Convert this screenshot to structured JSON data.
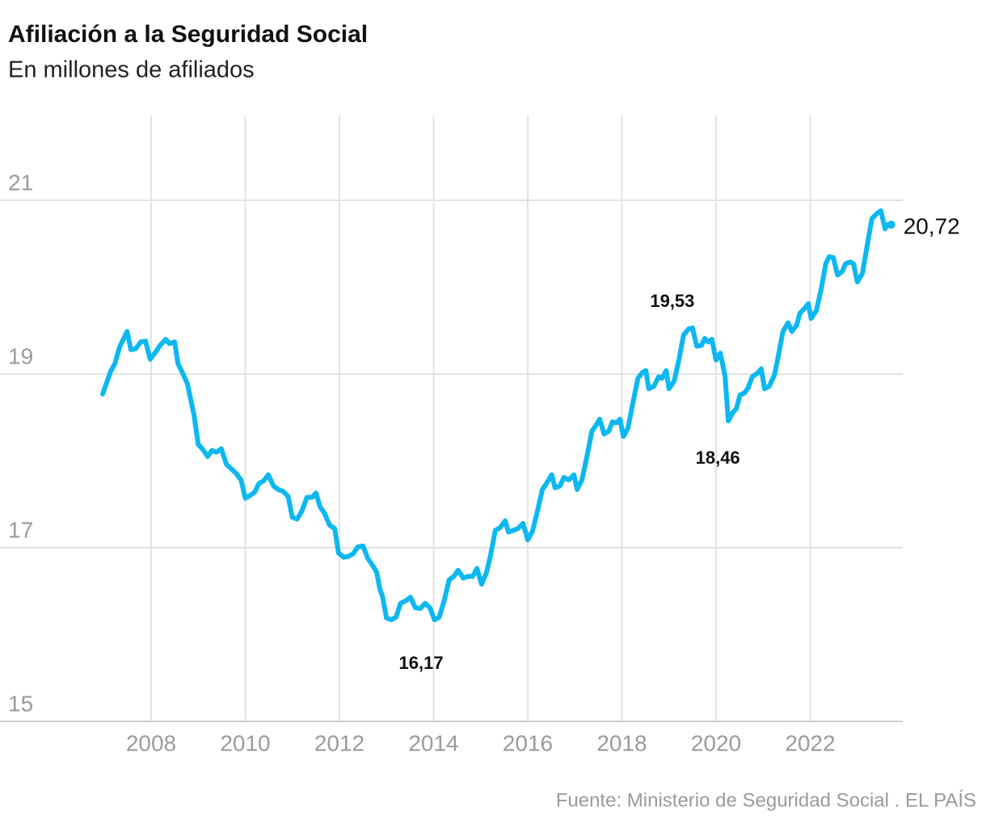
{
  "chart_data": {
    "type": "line",
    "title": "Afiliación a la Seguridad Social",
    "subtitle": "En millones de afiliados",
    "source": "Fuente: Ministerio de Seguridad Social . EL PAÍS",
    "x": [
      2006.97,
      2007.14,
      2007.23,
      2007.33,
      2007.49,
      2007.57,
      2007.67,
      2007.78,
      2007.88,
      2007.98,
      2008.09,
      2008.19,
      2008.31,
      2008.39,
      2008.5,
      2008.57,
      2008.67,
      2008.77,
      2008.91,
      2009.0,
      2009.1,
      2009.2,
      2009.29,
      2009.39,
      2009.49,
      2009.6,
      2009.7,
      2009.8,
      2009.91,
      2010.0,
      2010.1,
      2010.2,
      2010.29,
      2010.39,
      2010.49,
      2010.6,
      2010.7,
      2010.8,
      2010.91,
      2011.0,
      2011.1,
      2011.2,
      2011.31,
      2011.42,
      2011.5,
      2011.59,
      2011.69,
      2011.79,
      2011.9,
      2011.98,
      2012.09,
      2012.19,
      2012.29,
      2012.39,
      2012.5,
      2012.6,
      2012.7,
      2012.79,
      2012.86,
      2012.91,
      2013.0,
      2013.1,
      2013.2,
      2013.3,
      2013.41,
      2013.51,
      2013.61,
      2013.72,
      2013.82,
      2013.92,
      2014.02,
      2014.12,
      2014.22,
      2014.33,
      2014.43,
      2014.52,
      2014.63,
      2014.73,
      2014.83,
      2014.92,
      2015.02,
      2015.12,
      2015.21,
      2015.31,
      2015.41,
      2015.52,
      2015.59,
      2015.69,
      2015.79,
      2015.9,
      2016.0,
      2016.1,
      2016.21,
      2016.31,
      2016.41,
      2016.51,
      2016.58,
      2016.68,
      2016.77,
      2016.87,
      2016.98,
      2017.05,
      2017.15,
      2017.25,
      2017.36,
      2017.46,
      2017.53,
      2017.62,
      2017.72,
      2017.8,
      2017.89,
      2017.96,
      2018.03,
      2018.13,
      2018.23,
      2018.34,
      2018.44,
      2018.51,
      2018.57,
      2018.68,
      2018.78,
      2018.85,
      2018.94,
      2019.0,
      2019.11,
      2019.21,
      2019.31,
      2019.42,
      2019.5,
      2019.59,
      2019.69,
      2019.76,
      2019.83,
      2019.91,
      2020.0,
      2020.09,
      2020.19,
      2020.26,
      2020.36,
      2020.43,
      2020.51,
      2020.6,
      2020.68,
      2020.77,
      2020.88,
      2020.96,
      2021.03,
      2021.13,
      2021.24,
      2021.32,
      2021.42,
      2021.53,
      2021.61,
      2021.71,
      2021.78,
      2021.89,
      2021.96,
      2022.02,
      2022.13,
      2022.23,
      2022.33,
      2022.4,
      2022.49,
      2022.58,
      2022.68,
      2022.75,
      2022.85,
      2022.92,
      2023.0,
      2023.11,
      2023.21,
      2023.31,
      2023.42,
      2023.5,
      2023.59,
      2023.64,
      2023.72
    ],
    "values": [
      18.77,
      19.03,
      19.12,
      19.31,
      19.49,
      19.28,
      19.29,
      19.37,
      19.38,
      19.17,
      19.25,
      19.33,
      19.4,
      19.35,
      19.37,
      19.12,
      19.01,
      18.89,
      18.53,
      18.19,
      18.13,
      18.05,
      18.12,
      18.1,
      18.14,
      17.96,
      17.91,
      17.86,
      17.78,
      17.57,
      17.6,
      17.64,
      17.74,
      17.77,
      17.84,
      17.71,
      17.67,
      17.65,
      17.59,
      17.35,
      17.33,
      17.42,
      17.58,
      17.58,
      17.63,
      17.47,
      17.39,
      17.26,
      17.22,
      16.94,
      16.89,
      16.9,
      16.93,
      17.01,
      17.02,
      16.88,
      16.8,
      16.72,
      16.52,
      16.45,
      16.19,
      16.17,
      16.2,
      16.36,
      16.39,
      16.43,
      16.31,
      16.3,
      16.36,
      16.31,
      16.17,
      16.2,
      16.38,
      16.63,
      16.67,
      16.74,
      16.65,
      16.67,
      16.67,
      16.76,
      16.58,
      16.71,
      16.91,
      17.2,
      17.23,
      17.31,
      17.18,
      17.2,
      17.22,
      17.28,
      17.09,
      17.19,
      17.43,
      17.67,
      17.75,
      17.84,
      17.69,
      17.71,
      17.81,
      17.78,
      17.84,
      17.67,
      17.78,
      18.03,
      18.34,
      18.42,
      18.48,
      18.31,
      18.34,
      18.45,
      18.44,
      18.48,
      18.28,
      18.38,
      18.66,
      18.95,
      19.02,
      19.04,
      18.83,
      18.86,
      18.97,
      18.95,
      19.04,
      18.83,
      18.92,
      19.16,
      19.45,
      19.52,
      19.53,
      19.32,
      19.33,
      19.41,
      19.37,
      19.4,
      19.16,
      19.24,
      18.98,
      18.46,
      18.56,
      18.6,
      18.76,
      18.78,
      18.84,
      18.97,
      19.01,
      19.06,
      18.83,
      18.86,
      18.99,
      19.2,
      19.49,
      19.59,
      19.49,
      19.56,
      19.7,
      19.76,
      19.81,
      19.64,
      19.73,
      19.97,
      20.27,
      20.35,
      20.34,
      20.14,
      20.18,
      20.27,
      20.29,
      20.27,
      20.06,
      20.16,
      20.48,
      20.79,
      20.85,
      20.88,
      20.67,
      20.72,
      20.72
    ],
    "color": "#0db8f2",
    "xlim": [
      2005,
      2024
    ],
    "ylim": [
      15,
      22
    ],
    "xticks": [
      2008,
      2010,
      2012,
      2014,
      2016,
      2018,
      2020,
      2022
    ],
    "yticks": [
      15,
      17,
      19,
      21
    ],
    "grid": true,
    "annotations": [
      {
        "text": "19,53",
        "x": 2019.5,
        "y": 19.53
      },
      {
        "text": "18,46",
        "x": 2020.26,
        "y": 18.46
      },
      {
        "text": "16,17",
        "x": 2013.1,
        "y": 16.17
      },
      {
        "text": "20,72",
        "x": 2023.72,
        "y": 20.72
      }
    ]
  }
}
